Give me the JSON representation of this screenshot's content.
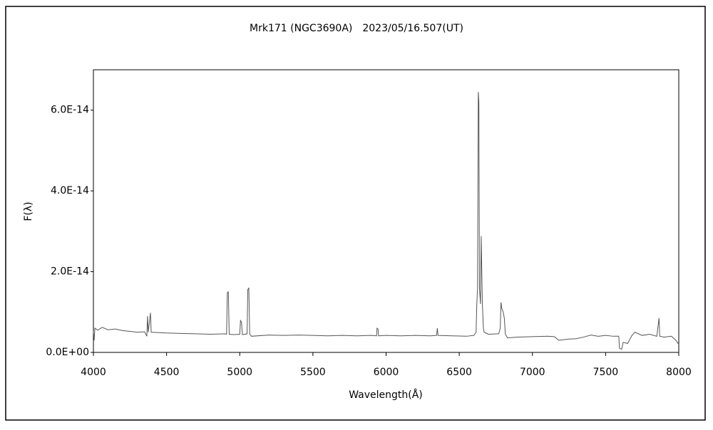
{
  "chart_data": {
    "type": "line",
    "title": "Mrk171 (NGC3690A)　2023/05/16.507(UT)",
    "x_label": "Wavelength(Å)",
    "y_label": "F(λ)",
    "color": "#555555",
    "xlim": [
      4000,
      8000
    ],
    "ylim": [
      0,
      7e-14
    ],
    "xticks": [
      4000,
      4500,
      5000,
      5500,
      6000,
      6500,
      7000,
      7500,
      8000
    ],
    "yticks": [
      {
        "value": 0,
        "label": "0.0E+00"
      },
      {
        "value": 2e-14,
        "label": "2.0E-14"
      },
      {
        "value": 4e-14,
        "label": "4.0E-14"
      },
      {
        "value": 6e-14,
        "label": "6.0E-14"
      }
    ],
    "grid": false,
    "x": [
      4000,
      4005,
      4010,
      4030,
      4060,
      4100,
      4150,
      4200,
      4250,
      4300,
      4350,
      4365,
      4370,
      4375,
      4390,
      4395,
      4450,
      4500,
      4600,
      4700,
      4800,
      4900,
      4910,
      4915,
      4922,
      4928,
      4960,
      5000,
      5005,
      5012,
      5018,
      5050,
      5055,
      5062,
      5068,
      5080,
      5200,
      5300,
      5400,
      5500,
      5600,
      5700,
      5800,
      5900,
      5935,
      5938,
      5945,
      5948,
      6000,
      6100,
      6200,
      6300,
      6345,
      6350,
      6355,
      6450,
      6550,
      6600,
      6615,
      6620,
      6625,
      6630,
      6634,
      6638,
      6645,
      6650,
      6654,
      6658,
      6665,
      6670,
      6700,
      6770,
      6780,
      6785,
      6790,
      6800,
      6808,
      6815,
      6830,
      6900,
      7000,
      7100,
      7150,
      7180,
      7250,
      7300,
      7350,
      7400,
      7450,
      7500,
      7550,
      7590,
      7595,
      7610,
      7620,
      7650,
      7680,
      7700,
      7750,
      7800,
      7850,
      7865,
      7870,
      7900,
      7950,
      7980,
      8000
    ],
    "values": [
      5.3e-15,
      3e-15,
      6e-15,
      5.5e-15,
      6.2e-15,
      5.6e-15,
      5.8e-15,
      5.4e-15,
      5.2e-15,
      5e-15,
      5.1e-15,
      4e-15,
      9e-15,
      5e-15,
      9.8e-15,
      5e-15,
      4.9e-15,
      4.8e-15,
      4.7e-15,
      4.6e-15,
      4.5e-15,
      4.6e-15,
      4.5e-15,
      1.48e-14,
      1.5e-14,
      4.5e-15,
      4.4e-15,
      4.5e-15,
      7.9e-15,
      7.5e-15,
      4.4e-15,
      4.6e-15,
      1.55e-14,
      1.6e-14,
      4.5e-15,
      4e-15,
      4.3e-15,
      4.2e-15,
      4.3e-15,
      4.2e-15,
      4.1e-15,
      4.2e-15,
      4.1e-15,
      4.2e-15,
      4.1e-15,
      6e-15,
      5.8e-15,
      4.1e-15,
      4.2e-15,
      4.1e-15,
      4.2e-15,
      4.1e-15,
      4.2e-15,
      6e-15,
      4.2e-15,
      4.1e-15,
      4e-15,
      4.2e-15,
      5e-15,
      1.2e-14,
      1.6e-14,
      6.45e-14,
      6.2e-14,
      1.6e-14,
      1.2e-14,
      2.88e-14,
      2e-14,
      1.2e-14,
      6e-15,
      5e-15,
      4.5e-15,
      4.6e-15,
      6e-15,
      1.24e-14,
      1.1e-14,
      1e-14,
      8.5e-15,
      4.5e-15,
      3.6e-15,
      3.8e-15,
      3.9e-15,
      4e-15,
      3.9e-15,
      3e-15,
      3.3e-15,
      3.4e-15,
      3.8e-15,
      4.3e-15,
      4e-15,
      4.2e-15,
      4e-15,
      4e-15,
      1e-15,
      8e-16,
      2.5e-15,
      2.2e-15,
      4.2e-15,
      5e-15,
      4.2e-15,
      4.5e-15,
      4e-15,
      8.5e-15,
      4e-15,
      3.8e-15,
      4e-15,
      3e-15,
      2e-15
    ]
  }
}
